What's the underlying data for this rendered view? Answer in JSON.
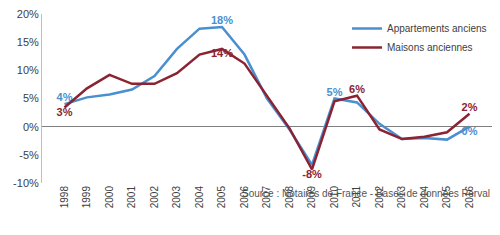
{
  "chart_data": {
    "type": "line",
    "categories": [
      "1998",
      "1999",
      "2000",
      "2001",
      "2002",
      "2003",
      "2004",
      "2005",
      "2006",
      "2007",
      "2008",
      "2009",
      "2010",
      "2011",
      "2012",
      "2013",
      "2014",
      "2015",
      "2016"
    ],
    "series": [
      {
        "name": "Appartements anciens",
        "color": "#4a8fd0",
        "values": [
          4,
          5.2,
          5.7,
          6.6,
          9,
          13.8,
          17.4,
          17.7,
          12.8,
          5,
          -0.5,
          -6.8,
          5,
          4.3,
          0.5,
          -2.2,
          -2,
          -2.3,
          0
        ],
        "value_labels": [
          "4%",
          null,
          null,
          null,
          null,
          null,
          null,
          "18%",
          null,
          null,
          null,
          null,
          "5%",
          null,
          null,
          null,
          null,
          null,
          "0%"
        ]
      },
      {
        "name": "Maisons anciennes",
        "color": "#8b2332",
        "values": [
          3.4,
          6.8,
          9.2,
          7.6,
          7.6,
          9.5,
          12.8,
          13.8,
          11.2,
          5.5,
          -0.3,
          -7.6,
          4.5,
          5.5,
          -0.5,
          -2.2,
          -1.8,
          -1,
          2.3
        ],
        "value_labels": [
          "3%",
          null,
          null,
          null,
          null,
          null,
          null,
          "14%",
          null,
          null,
          null,
          "-8%",
          null,
          "6%",
          null,
          null,
          null,
          null,
          "2%"
        ]
      }
    ],
    "ylim": [
      -10,
      20
    ],
    "yticks": [
      {
        "value": -10,
        "label": "-10%"
      },
      {
        "value": -5,
        "label": "-5%"
      },
      {
        "value": 0,
        "label": "0%"
      },
      {
        "value": 5,
        "label": "5%"
      },
      {
        "value": 10,
        "label": "10%"
      },
      {
        "value": 15,
        "label": "15%"
      },
      {
        "value": 20,
        "label": "20%"
      }
    ],
    "grid": false,
    "legend": "top-right",
    "data_labels": true,
    "annotations": [
      "Source : Notaires de France - Bases de données Perval"
    ]
  }
}
